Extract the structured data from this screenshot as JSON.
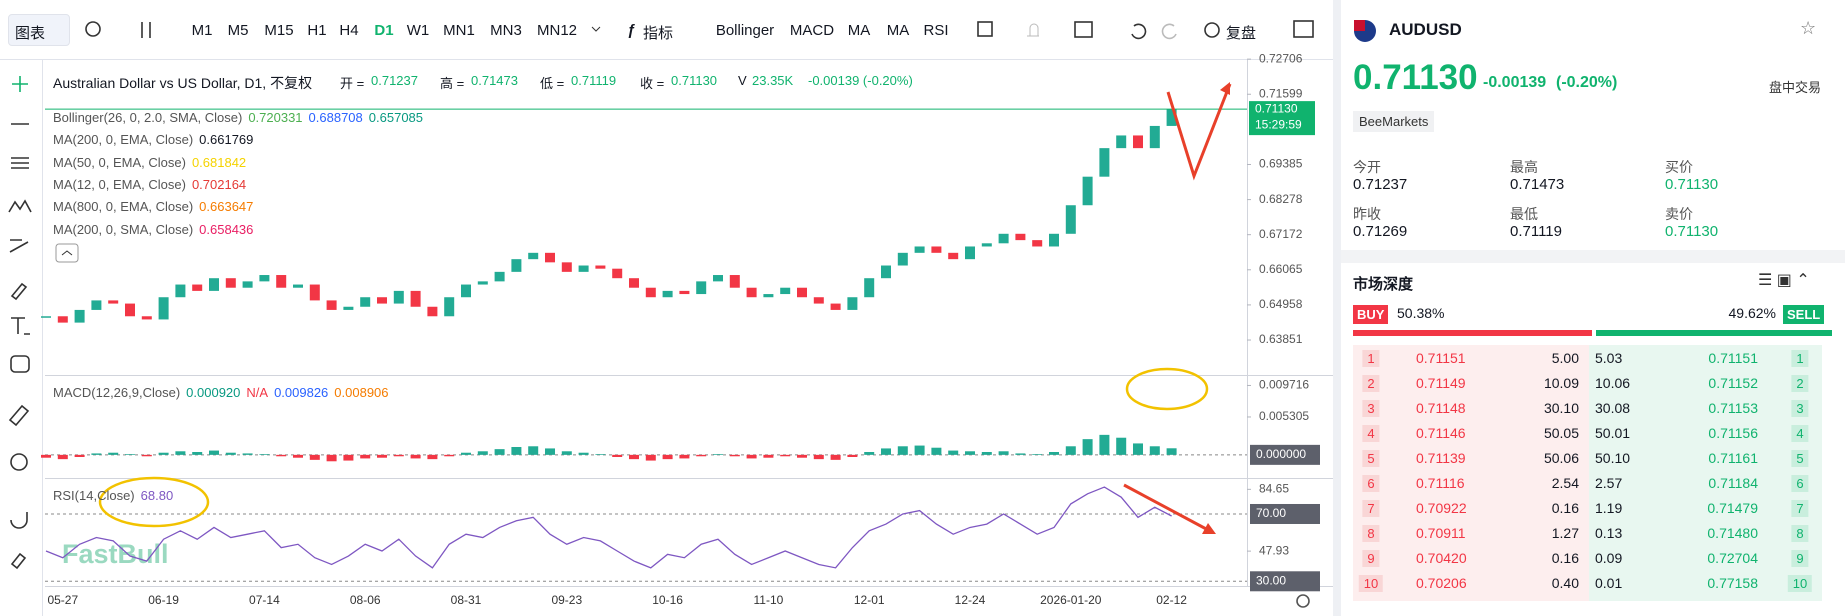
{
  "toolbar": {
    "chart_menu": "图表",
    "timeframes": [
      "M1",
      "M5",
      "M15",
      "H1",
      "H4",
      "D1",
      "W1",
      "MN1",
      "MN3",
      "MN12"
    ],
    "active_timeframe": "D1",
    "indicators_menu": "指标",
    "indicators": [
      "Bollinger",
      "MACD",
      "MA",
      "MA",
      "RSI"
    ],
    "replay": "复盘"
  },
  "legend": {
    "symbol_title": "Australian Dollar vs US Dollar, D1, 不复权",
    "fields": [
      {
        "label": "开 =",
        "value": "0.71237"
      },
      {
        "label": "高 =",
        "value": "0.71473"
      },
      {
        "label": "低 =",
        "value": "0.71119"
      },
      {
        "label": "收 =",
        "value": "0.71130"
      }
    ],
    "volume_label": "V",
    "volume": "23.35K",
    "change": "-0.00139 (-0.20%)",
    "indicators": [
      {
        "name": "Bollinger(26, 0, 2.0, SMA, Close)",
        "values": [
          "0.720331",
          "0.688708",
          "0.657085"
        ],
        "colors": [
          "#4caf50",
          "#2962ff",
          "#089981"
        ]
      },
      {
        "name": "MA(200, 0, EMA, Close)",
        "values": [
          "0.661769"
        ],
        "colors": [
          "#131722"
        ]
      },
      {
        "name": "MA(50, 0, EMA, Close)",
        "values": [
          "0.681842"
        ],
        "colors": [
          "#f5d300"
        ]
      },
      {
        "name": "MA(12, 0, EMA, Close)",
        "values": [
          "0.702164"
        ],
        "colors": [
          "#e53935"
        ]
      },
      {
        "name": "MA(800, 0, EMA, Close)",
        "values": [
          "0.663647"
        ],
        "colors": [
          "#f57c00"
        ]
      },
      {
        "name": "MA(200, 0, SMA, Close)",
        "values": [
          "0.658436"
        ],
        "colors": [
          "#e91e63"
        ]
      }
    ]
  },
  "chart_data": [
    {
      "type": "candlestick",
      "x": [
        null,
        "05-27",
        null,
        null,
        null,
        null,
        null,
        "06-19",
        null,
        null,
        null,
        null,
        null,
        "07-14",
        null,
        null,
        null,
        null,
        null,
        "08-06",
        null,
        null,
        null,
        null,
        null,
        "08-31",
        null,
        null,
        null,
        null,
        null,
        "09-23",
        null,
        null,
        null,
        null,
        null,
        "10-16",
        null,
        null,
        null,
        null,
        null,
        "11-10",
        null,
        null,
        null,
        null,
        null,
        "12-01",
        null,
        null,
        null,
        null,
        null,
        "12-24",
        null,
        null,
        null,
        null,
        null,
        "2026-01-20",
        null,
        null,
        null,
        null,
        null,
        "02-12"
      ],
      "values": [
        0.646,
        0.644,
        0.648,
        0.651,
        0.65,
        0.646,
        0.645,
        0.652,
        0.656,
        0.654,
        0.658,
        0.655,
        0.657,
        0.659,
        0.655,
        0.656,
        0.651,
        0.648,
        0.649,
        0.652,
        0.65,
        0.654,
        0.649,
        0.646,
        0.652,
        0.656,
        0.657,
        0.66,
        0.664,
        0.666,
        0.663,
        0.66,
        0.662,
        0.661,
        0.658,
        0.655,
        0.652,
        0.654,
        0.653,
        0.657,
        0.659,
        0.655,
        0.652,
        0.653,
        0.655,
        0.652,
        0.65,
        0.648,
        0.652,
        0.658,
        0.662,
        0.666,
        0.668,
        0.666,
        0.664,
        0.668,
        0.669,
        0.672,
        0.67,
        0.668,
        0.672,
        0.681,
        0.69,
        0.699,
        0.703,
        0.699,
        0.706,
        0.7113
      ],
      "color_up": "#22ab94",
      "color_down": "#f23645",
      "ylim": [
        0.6278,
        0.7271
      ],
      "yticks": [
        0.72706,
        0.71599,
        0.69385,
        0.68278,
        0.67172,
        0.66065,
        0.64958,
        0.63851
      ],
      "last_price": {
        "value": 0.7113,
        "label": "0.71130"
      },
      "countdown": "15:29:59",
      "last_color": "#10b36e"
    },
    {
      "type": "bar",
      "title": "MACD(12,26,9,Close)",
      "legend_values": [
        "0.000920",
        "N/A",
        "0.009826",
        "0.008906"
      ],
      "legend_colors": [
        "#089981",
        "#f23645",
        "#2962ff",
        "#f57c00"
      ],
      "values": [
        -0.0004,
        -0.0006,
        -0.0003,
        0.0002,
        0.0003,
        0.0001,
        -0.0002,
        0.0003,
        0.0005,
        0.0004,
        0.0006,
        0.0003,
        0.0002,
        0.0001,
        -0.0002,
        -0.0004,
        -0.0007,
        -0.0009,
        -0.0008,
        -0.0005,
        -0.0004,
        -0.0002,
        -0.0005,
        -0.0006,
        -0.0002,
        0.0003,
        0.0005,
        0.0008,
        0.0011,
        0.0012,
        0.0009,
        0.0005,
        0.0003,
        0.0001,
        -0.0003,
        -0.0006,
        -0.0008,
        -0.0006,
        -0.0005,
        -0.0002,
        0.0001,
        -0.0002,
        -0.0005,
        -0.0004,
        -0.0002,
        -0.0004,
        -0.0006,
        -0.0007,
        -0.0003,
        0.0004,
        0.0009,
        0.0012,
        0.0013,
        0.001,
        0.0006,
        0.0005,
        0.0004,
        0.0005,
        0.0002,
        0.0001,
        0.0004,
        0.0012,
        0.0022,
        0.0028,
        0.0024,
        0.0016,
        0.0012,
        0.00092
      ],
      "color_up": "#22ab94",
      "color_down": "#f23645",
      "ylim": [
        -0.0031,
        0.0109
      ],
      "yticks": [
        0.009716,
        0.005305,
        {
          "value": 0,
          "label": "0.000000"
        }
      ]
    },
    {
      "type": "line",
      "title": "RSI(14,Close)",
      "legend_value": "68.80",
      "color": "#7e57c2",
      "values": [
        48,
        44,
        52,
        56,
        54,
        45,
        42,
        55,
        60,
        55,
        62,
        56,
        58,
        60,
        50,
        52,
        44,
        40,
        45,
        52,
        48,
        55,
        45,
        38,
        52,
        58,
        56,
        62,
        66,
        68,
        58,
        52,
        56,
        54,
        48,
        42,
        38,
        46,
        44,
        52,
        55,
        46,
        40,
        44,
        48,
        44,
        40,
        38,
        50,
        60,
        64,
        70,
        72,
        64,
        58,
        62,
        64,
        70,
        64,
        58,
        62,
        76,
        82,
        86,
        80,
        68,
        74,
        68.8
      ],
      "ylim": [
        27.2,
        90.2
      ],
      "yticks": [
        84.65,
        {
          "value": 70,
          "label": "70.00"
        },
        47.93,
        {
          "value": 30,
          "label": "30.00"
        }
      ]
    }
  ],
  "watermark": "FastBull",
  "side_panel": {
    "symbol": "AUDUSD",
    "price": "0.71130",
    "change": "-0.00139",
    "change_pct": "(-0.20%)",
    "session": "盘中交易",
    "broker": "BeeMarkets",
    "stats": [
      {
        "label": "今开",
        "value": "0.71237"
      },
      {
        "label": "最高",
        "value": "0.71473"
      },
      {
        "label": "买价",
        "value": "0.71130",
        "color": "#10b36e"
      },
      {
        "label": "昨收",
        "value": "0.71269"
      },
      {
        "label": "最低",
        "value": "0.71119"
      },
      {
        "label": "卖价",
        "value": "0.71130",
        "color": "#10b36e"
      }
    ],
    "depth_title": "市场深度",
    "buy_label": "BUY",
    "buy_pct": {
      "value": 50.38,
      "label": "50.38%"
    },
    "sell_label": "SELL",
    "sell_pct": {
      "value": 49.62,
      "label": "49.62%"
    },
    "depth_rows": [
      [
        "1",
        "0.71151",
        "5.00",
        "5.03",
        "0.71151",
        "1"
      ],
      [
        "2",
        "0.71149",
        "10.09",
        "10.06",
        "0.71152",
        "2"
      ],
      [
        "3",
        "0.71148",
        "30.10",
        "30.08",
        "0.71153",
        "3"
      ],
      [
        "4",
        "0.71146",
        "50.05",
        "50.01",
        "0.71156",
        "4"
      ],
      [
        "5",
        "0.71139",
        "50.06",
        "50.10",
        "0.71161",
        "5"
      ],
      [
        "6",
        "0.71116",
        "2.54",
        "2.57",
        "0.71184",
        "6"
      ],
      [
        "7",
        "0.70922",
        "0.16",
        "1.19",
        "0.71479",
        "7"
      ],
      [
        "8",
        "0.70911",
        "1.27",
        "0.13",
        "0.71480",
        "8"
      ],
      [
        "9",
        "0.70420",
        "0.16",
        "0.09",
        "0.72704",
        "9"
      ],
      [
        "10",
        "0.70206",
        "0.40",
        "0.01",
        "0.77158",
        "10"
      ]
    ]
  }
}
